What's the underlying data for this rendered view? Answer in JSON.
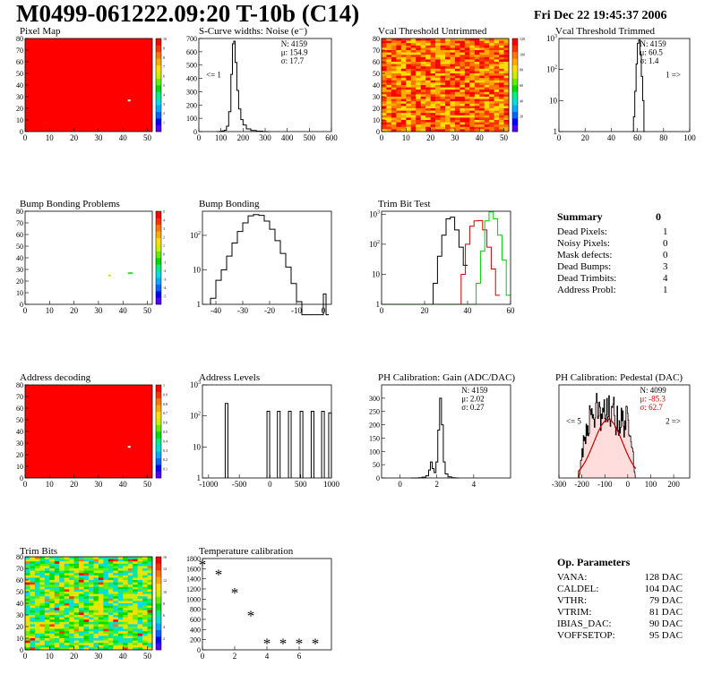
{
  "header": {
    "title": "M0499-061222.09:20 T-10b (C14)",
    "date": "Fri Dec 22 19:45:37 2006"
  },
  "chart_data": [
    {
      "id": "pixel-map",
      "type": "heatmap",
      "title": "Pixel Map",
      "xticks": [
        "0",
        "10",
        "20",
        "30",
        "40",
        "50"
      ],
      "yticks": [
        "0",
        "10",
        "20",
        "30",
        "40",
        "50",
        "60",
        "70",
        "80"
      ],
      "xlim": [
        0,
        52
      ],
      "ylim": [
        0,
        80
      ],
      "fill": "uniform-red",
      "hot_pixels": [
        {
          "x": 42,
          "y": 26
        }
      ],
      "zticks": [
        "1",
        "2",
        "3",
        "4",
        "5",
        "6",
        "7",
        "8",
        "9",
        "10"
      ]
    },
    {
      "id": "scurve-noise",
      "type": "histogram",
      "title": "S-Curve widths: Noise (e⁻)",
      "xlim": [
        0,
        600
      ],
      "ylim": [
        0,
        700
      ],
      "xticks": [
        "0",
        "100",
        "200",
        "300",
        "400",
        "500",
        "600"
      ],
      "yticks": [
        "0",
        "100",
        "200",
        "300",
        "400",
        "500",
        "600",
        "700"
      ],
      "stats": [
        "N: 4159",
        "μ: 154.9",
        "σ: 17.7"
      ],
      "note_left": "<= 1",
      "bins": [
        [
          80,
          0
        ],
        [
          95,
          2
        ],
        [
          105,
          5
        ],
        [
          115,
          10
        ],
        [
          125,
          40
        ],
        [
          135,
          150
        ],
        [
          145,
          430
        ],
        [
          152,
          660
        ],
        [
          158,
          680
        ],
        [
          164,
          520
        ],
        [
          172,
          310
        ],
        [
          180,
          170
        ],
        [
          190,
          90
        ],
        [
          200,
          50
        ],
        [
          215,
          20
        ],
        [
          235,
          8
        ],
        [
          260,
          3
        ],
        [
          290,
          0
        ]
      ]
    },
    {
      "id": "vcal-untrimmed",
      "type": "heatmap",
      "title": "Vcal Threshold Untrimmed",
      "xticks": [
        "0",
        "10",
        "20",
        "30",
        "40",
        "50"
      ],
      "yticks": [
        "0",
        "10",
        "20",
        "30",
        "40",
        "50",
        "60",
        "70",
        "80"
      ],
      "xlim": [
        0,
        52
      ],
      "ylim": [
        0,
        80
      ],
      "fill": "noisy-orange",
      "zticks": [
        "20",
        "40",
        "60",
        "80",
        "100",
        "120"
      ]
    },
    {
      "id": "vcal-trimmed",
      "type": "histogram",
      "title": "Vcal Threshold Trimmed",
      "log_y": true,
      "xlim": [
        0,
        100
      ],
      "ylim_log": [
        0,
        3
      ],
      "xticks": [
        "0",
        "20",
        "40",
        "60",
        "80",
        "100"
      ],
      "stats": [
        "N: 4159",
        "μ: 60.5",
        "σ: 1.4"
      ],
      "note_right": "1 =>",
      "bins": [
        [
          56,
          1
        ],
        [
          57,
          3
        ],
        [
          58,
          20
        ],
        [
          59,
          150
        ],
        [
          60,
          700
        ],
        [
          61,
          900
        ],
        [
          62,
          300
        ],
        [
          63,
          60
        ],
        [
          64,
          10
        ],
        [
          65,
          1
        ]
      ]
    },
    {
      "id": "bump-problems",
      "type": "heatmap",
      "title": "Bump Bonding Problems",
      "xticks": [
        "0",
        "10",
        "20",
        "30",
        "40",
        "50"
      ],
      "yticks": [
        "0",
        "10",
        "20",
        "30",
        "40",
        "50",
        "60",
        "70",
        "80"
      ],
      "xlim": [
        0,
        52
      ],
      "ylim": [
        0,
        80
      ],
      "fill": "empty",
      "hot_pixels": [
        {
          "x": 34,
          "y": 24,
          "color": "#c8e600"
        },
        {
          "x": 42,
          "y": 26,
          "color": "#33dd33"
        },
        {
          "x": 43,
          "y": 26,
          "color": "#33dd33"
        }
      ],
      "zticks": [
        "-5",
        "-4",
        "-3",
        "-2",
        "-1",
        "0",
        "1",
        "2",
        "3",
        "4",
        "5"
      ]
    },
    {
      "id": "bump-bonding",
      "type": "histogram",
      "title": "Bump Bonding",
      "log_y": true,
      "xlim": [
        -45,
        3
      ],
      "ylim_log": [
        0,
        2.7
      ],
      "xticks": [
        "-40",
        "-30",
        "-20",
        "-10",
        "0"
      ],
      "bins": [
        [
          -42,
          1.5
        ],
        [
          -40,
          5
        ],
        [
          -38,
          10
        ],
        [
          -36,
          25
        ],
        [
          -34,
          60
        ],
        [
          -32,
          130
        ],
        [
          -30,
          230
        ],
        [
          -28,
          370
        ],
        [
          -26,
          400
        ],
        [
          -24,
          380
        ],
        [
          -22,
          260
        ],
        [
          -20,
          150
        ],
        [
          -18,
          70
        ],
        [
          -16,
          30
        ],
        [
          -14,
          12
        ],
        [
          -12,
          4
        ],
        [
          -10,
          1.2
        ],
        [
          -8,
          0
        ],
        [
          0,
          2
        ],
        [
          1,
          0
        ]
      ]
    },
    {
      "id": "trim-bit-test",
      "type": "histogram",
      "title": "Trim Bit Test",
      "log_y": true,
      "xlim": [
        0,
        60
      ],
      "ylim_log": [
        0,
        3.1
      ],
      "xticks": [
        "0",
        "20",
        "40",
        "60"
      ],
      "series": [
        {
          "color": "#000000",
          "bins": [
            [
              22,
              1
            ],
            [
              24,
              5
            ],
            [
              26,
              40
            ],
            [
              28,
              200
            ],
            [
              30,
              700
            ],
            [
              32,
              800
            ],
            [
              34,
              300
            ],
            [
              36,
              80
            ],
            [
              38,
              20
            ]
          ]
        },
        {
          "color": "#cc0000",
          "bins": [
            [
              35,
              1
            ],
            [
              37,
              10
            ],
            [
              39,
              100
            ],
            [
              41,
              400
            ],
            [
              43,
              600
            ],
            [
              45,
              620
            ],
            [
              47,
              300
            ],
            [
              49,
              80
            ],
            [
              51,
              15
            ],
            [
              53,
              2
            ]
          ]
        },
        {
          "color": "#00cc00",
          "bins": [
            [
              1,
              1
            ],
            [
              2,
              1
            ],
            [
              44,
              5
            ],
            [
              46,
              60
            ],
            [
              48,
              600
            ],
            [
              50,
              1200
            ],
            [
              52,
              700
            ],
            [
              54,
              200
            ],
            [
              56,
              30
            ],
            [
              58,
              2
            ]
          ]
        }
      ]
    },
    {
      "id": "address-decoding",
      "type": "heatmap",
      "title": "Address decoding",
      "xticks": [
        "0",
        "10",
        "20",
        "30",
        "40",
        "50"
      ],
      "yticks": [
        "0",
        "10",
        "20",
        "30",
        "40",
        "50",
        "60",
        "70",
        "80"
      ],
      "xlim": [
        0,
        52
      ],
      "ylim": [
        0,
        80
      ],
      "fill": "uniform-red",
      "hot_pixels": [
        {
          "x": 42,
          "y": 26
        }
      ],
      "zticks": [
        "0.1",
        "0.2",
        "0.3",
        "0.4",
        "0.5",
        "0.6",
        "0.7",
        "0.8",
        "0.9",
        "1"
      ]
    },
    {
      "id": "address-levels",
      "type": "histogram",
      "title": "Address Levels",
      "log_y": true,
      "xlim": [
        -1100,
        1000
      ],
      "ylim_log": [
        0,
        3
      ],
      "xticks": [
        "-1000",
        "-500",
        "0",
        "500",
        "1000"
      ],
      "peaks": [
        {
          "x": -700,
          "h": 2.4
        },
        {
          "x": -20,
          "h": 2.15
        },
        {
          "x": 150,
          "h": 2.15
        },
        {
          "x": 330,
          "h": 2.15
        },
        {
          "x": 520,
          "h": 2.15
        },
        {
          "x": 700,
          "h": 2.15
        },
        {
          "x": 870,
          "h": 2.15
        },
        {
          "x": 985,
          "h": 2.1
        }
      ]
    },
    {
      "id": "ph-gain",
      "type": "histogram",
      "title": "PH Calibration: Gain (ADC/DAC)",
      "xlim": [
        -1,
        6
      ],
      "ylim": [
        0,
        350
      ],
      "xticks": [
        "0",
        "2",
        "4"
      ],
      "yticks": [
        "0",
        "50",
        "100",
        "150",
        "200",
        "250",
        "300"
      ],
      "stats": [
        "N: 4159",
        "μ: 2.02",
        "σ: 0.27"
      ],
      "bins": [
        [
          0.6,
          0
        ],
        [
          1.0,
          1
        ],
        [
          1.2,
          3
        ],
        [
          1.4,
          8
        ],
        [
          1.55,
          30
        ],
        [
          1.65,
          60
        ],
        [
          1.75,
          35
        ],
        [
          1.85,
          20
        ],
        [
          1.95,
          60
        ],
        [
          2.05,
          180
        ],
        [
          2.15,
          300
        ],
        [
          2.25,
          200
        ],
        [
          2.35,
          60
        ],
        [
          2.45,
          15
        ],
        [
          2.6,
          4
        ],
        [
          2.8,
          1
        ],
        [
          3.0,
          0
        ]
      ]
    },
    {
      "id": "ph-pedestal",
      "type": "histogram",
      "title": "PH Calibration: Pedestal (DAC)",
      "xlim": [
        -300,
        270
      ],
      "ylim": [
        0,
        140
      ],
      "xticks": [
        "-300",
        "-200",
        "-100",
        "0",
        "100",
        "200"
      ],
      "stats": [
        "N: 4099",
        "μ: -85.3",
        "σ: 62.7"
      ],
      "stats_colors": [
        "#000000",
        "#cc0000",
        "#cc0000"
      ],
      "note_left": "<= 5",
      "note_right": "2 =>"
    },
    {
      "id": "trim-bits",
      "type": "heatmap",
      "title": "Trim Bits",
      "xticks": [
        "0",
        "10",
        "20",
        "30",
        "40",
        "50"
      ],
      "yticks": [
        "0",
        "10",
        "20",
        "30",
        "40",
        "50",
        "60",
        "70",
        "80"
      ],
      "xlim": [
        0,
        52
      ],
      "ylim": [
        0,
        80
      ],
      "fill": "noisy-green",
      "zticks": [
        "2",
        "4",
        "6",
        "8",
        "10",
        "12",
        "14",
        "16"
      ]
    },
    {
      "id": "temperature-calibration",
      "type": "scatter",
      "title": "Temperature calibration",
      "xlim": [
        0,
        8
      ],
      "ylim": [
        0,
        1800
      ],
      "xticks": [
        "0",
        "2",
        "4",
        "6"
      ],
      "yticks": [
        "0",
        "200",
        "400",
        "600",
        "800",
        "1000",
        "1200",
        "1400",
        "1600",
        "1800"
      ],
      "points": [
        [
          0,
          1650
        ],
        [
          1,
          1460
        ],
        [
          2,
          1090
        ],
        [
          3,
          640
        ],
        [
          4,
          100
        ],
        [
          5,
          100
        ],
        [
          6,
          100
        ],
        [
          7,
          100
        ]
      ]
    }
  ],
  "summary": {
    "title": "Summary",
    "total": "0",
    "rows": [
      {
        "label": "Dead Pixels:",
        "value": "1"
      },
      {
        "label": "Noisy Pixels:",
        "value": "0"
      },
      {
        "label": "Mask defects:",
        "value": "0"
      },
      {
        "label": "Dead Bumps:",
        "value": "3"
      },
      {
        "label": "Dead Trimbits:",
        "value": "4"
      },
      {
        "label": "Address Probl:",
        "value": "1"
      }
    ]
  },
  "op_parameters": {
    "title": "Op. Parameters",
    "rows": [
      {
        "label": "VANA:",
        "value": "128 DAC"
      },
      {
        "label": "CALDEL:",
        "value": "104 DAC"
      },
      {
        "label": "VTHR:",
        "value": "79 DAC"
      },
      {
        "label": "VTRIM:",
        "value": "81 DAC"
      },
      {
        "label": "IBIAS_DAC:",
        "value": "90 DAC"
      },
      {
        "label": "VOFFSETOP:",
        "value": "95 DAC"
      }
    ]
  }
}
